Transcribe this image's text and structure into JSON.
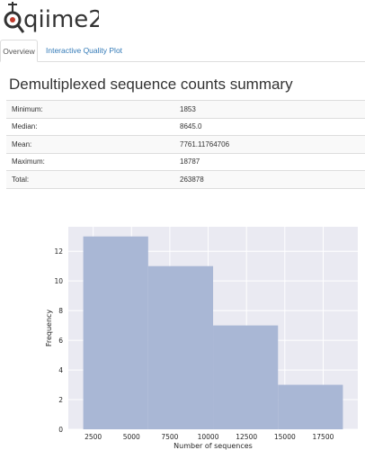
{
  "header": {
    "logo_text": "qiime2",
    "logo_icon": "qiime2-logo-icon"
  },
  "tabs": [
    {
      "label": "Overview",
      "active": true
    },
    {
      "label": "Interactive Quality Plot",
      "active": false
    }
  ],
  "main": {
    "title": "Demultiplexed sequence counts summary",
    "summary_rows": [
      {
        "label": "Minimum:",
        "value": "1853"
      },
      {
        "label": "Median:",
        "value": "8645.0"
      },
      {
        "label": "Mean:",
        "value": "7761.11764706"
      },
      {
        "label": "Maximum:",
        "value": "18787"
      },
      {
        "label": "Total:",
        "value": "263878"
      }
    ]
  },
  "colors": {
    "link": "#337ab7",
    "plot_background": "#eaeaf2",
    "bar_fill": "#a9b7d5",
    "logo_red": "#c0392b"
  },
  "chart_data": {
    "type": "bar",
    "title": "",
    "xlabel": "Number of sequences",
    "ylabel": "Frequency",
    "bins": [
      {
        "start": 1853,
        "end": 6087.5,
        "value": 13
      },
      {
        "start": 6087.5,
        "end": 10321.9,
        "value": 11
      },
      {
        "start": 10321.9,
        "end": 14556.4,
        "value": 7
      },
      {
        "start": 14556.4,
        "end": 18787,
        "value": 3
      }
    ],
    "x_ticks": [
      2500,
      5000,
      7500,
      10000,
      12500,
      15000,
      17500
    ],
    "y_ticks": [
      0,
      2,
      4,
      6,
      8,
      10,
      12
    ],
    "xlim": [
      880,
      19760
    ],
    "ylim": [
      0,
      13.65
    ],
    "grid": true,
    "legend": false
  }
}
